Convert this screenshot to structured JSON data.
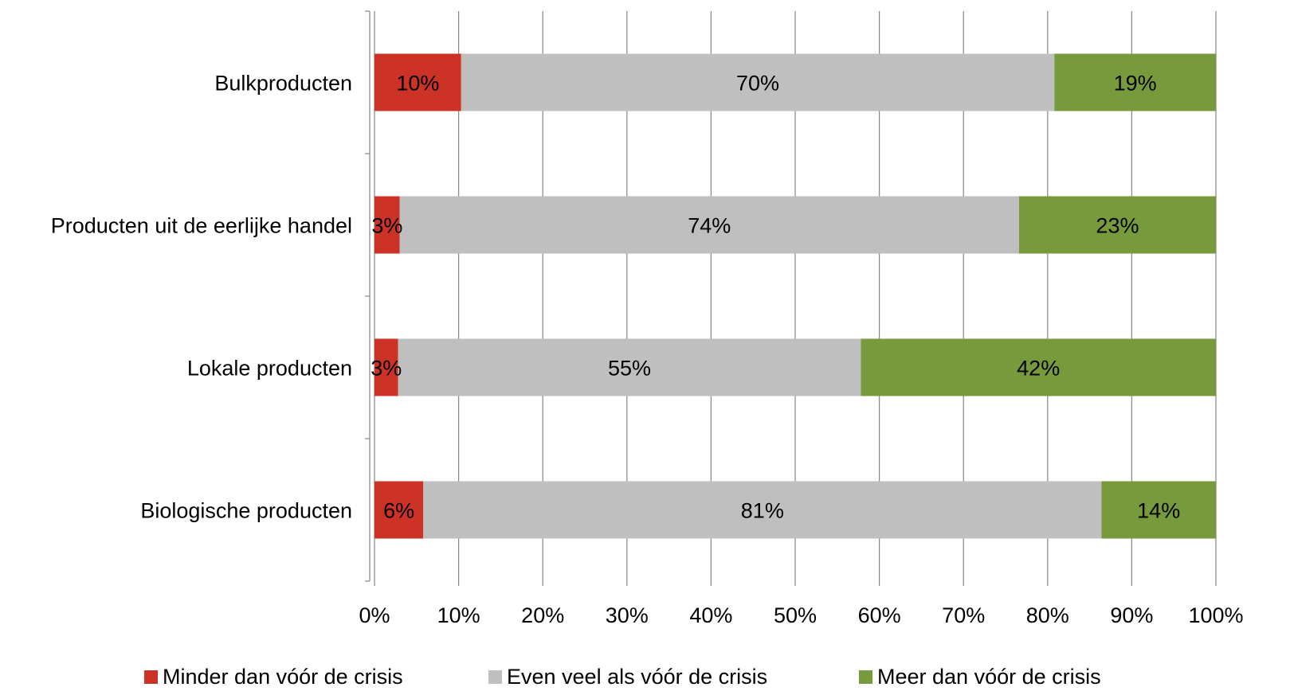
{
  "chart_data": {
    "type": "bar",
    "orientation": "horizontal",
    "stacked": true,
    "categories": [
      "Bulkproducten",
      "Producten uit de eerlijke handel",
      "Lokale producten",
      "Biologische producten"
    ],
    "series": [
      {
        "name": "Minder dan vóór de crisis",
        "color": "#cc3326",
        "values": [
          10,
          3,
          3,
          6
        ],
        "widths": [
          10.3,
          3.0,
          2.8,
          5.8
        ],
        "labels": [
          "10%",
          "3%",
          "3%",
          "6%"
        ]
      },
      {
        "name": "Even veel als vóór de crisis",
        "color": "#bfbfbf",
        "values": [
          70,
          74,
          55,
          81
        ],
        "widths": [
          70.5,
          73.6,
          55.0,
          80.6
        ],
        "labels": [
          "70%",
          "74%",
          "55%",
          "81%"
        ]
      },
      {
        "name": "Meer dan vóór de crisis",
        "color": "#779a3c",
        "values": [
          19,
          23,
          42,
          14
        ],
        "widths": [
          19.2,
          23.4,
          42.2,
          13.6
        ],
        "labels": [
          "19%",
          "23%",
          "42%",
          "14%"
        ]
      }
    ],
    "xlim": [
      0,
      100
    ],
    "x_ticks": [
      "0%",
      "10%",
      "20%",
      "30%",
      "40%",
      "50%",
      "60%",
      "70%",
      "80%",
      "90%",
      "100%"
    ],
    "grid": true,
    "legend_position": "bottom",
    "title": "",
    "xlabel": "",
    "ylabel": ""
  }
}
